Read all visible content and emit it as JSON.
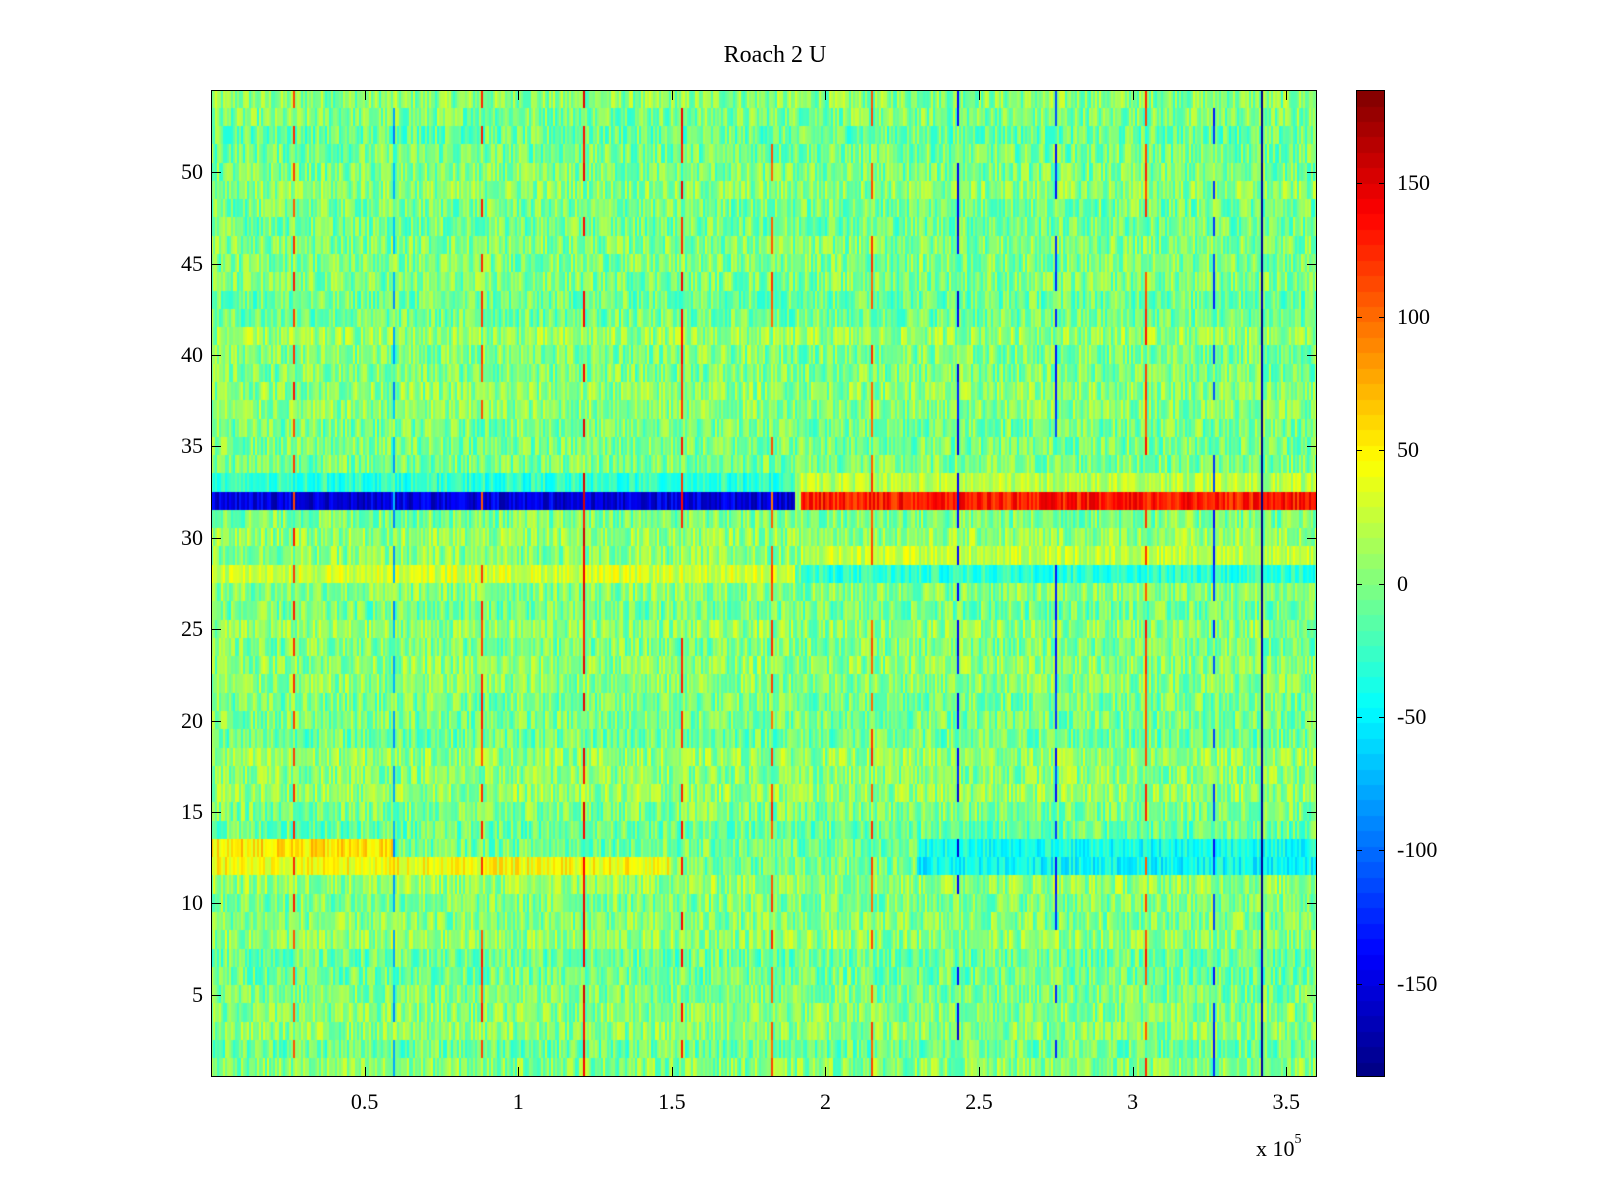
{
  "chart_data": {
    "type": "heatmap",
    "title": "Roach 2 U",
    "xlabel": "",
    "ylabel": "",
    "x_range": [
      0,
      360000
    ],
    "y_range": [
      1,
      54
    ],
    "x_ticks": [
      {
        "value": 50000,
        "label": "0.5"
      },
      {
        "value": 100000,
        "label": "1"
      },
      {
        "value": 150000,
        "label": "1.5"
      },
      {
        "value": 200000,
        "label": "2"
      },
      {
        "value": 250000,
        "label": "2.5"
      },
      {
        "value": 300000,
        "label": "3"
      },
      {
        "value": 350000,
        "label": "3.5"
      }
    ],
    "x_exponent": {
      "prefix": "x 10",
      "power": "5"
    },
    "y_ticks": [
      {
        "value": 5,
        "label": "5"
      },
      {
        "value": 10,
        "label": "10"
      },
      {
        "value": 15,
        "label": "15"
      },
      {
        "value": 20,
        "label": "20"
      },
      {
        "value": 25,
        "label": "25"
      },
      {
        "value": 30,
        "label": "30"
      },
      {
        "value": 35,
        "label": "35"
      },
      {
        "value": 40,
        "label": "40"
      },
      {
        "value": 45,
        "label": "45"
      },
      {
        "value": 50,
        "label": "50"
      }
    ],
    "colorbar": {
      "colormap": "jet",
      "range": [
        -185,
        185
      ],
      "ticks": [
        {
          "value": 150,
          "label": "150"
        },
        {
          "value": 100,
          "label": "100"
        },
        {
          "value": 50,
          "label": "50"
        },
        {
          "value": 0,
          "label": "0"
        },
        {
          "value": -50,
          "label": "-50"
        },
        {
          "value": -100,
          "label": "-100"
        },
        {
          "value": -150,
          "label": "-150"
        }
      ]
    },
    "noise_amplitude": 30,
    "vertical_streaks": [
      {
        "x": 27000,
        "value": 120,
        "rows": "even"
      },
      {
        "x": 59000,
        "value": -80,
        "rows": "alternate"
      },
      {
        "x": 88000,
        "value": 120,
        "rows": "mixed"
      },
      {
        "x": 121000,
        "value": 140,
        "rows": "mixed"
      },
      {
        "x": 153000,
        "value": 130,
        "rows": "mixed"
      },
      {
        "x": 182000,
        "value": 110,
        "rows": "mixed"
      },
      {
        "x": 215000,
        "value": 110,
        "rows": "mixed"
      },
      {
        "x": 243000,
        "value": -140,
        "rows": "mixed"
      },
      {
        "x": 275000,
        "value": -120,
        "rows": "mixed"
      },
      {
        "x": 304000,
        "value": 120,
        "rows": "mixed"
      },
      {
        "x": 326000,
        "value": -120,
        "rows": "mixed"
      },
      {
        "x": 342000,
        "value": -180,
        "rows": "all"
      }
    ],
    "row_bands": [
      {
        "row": 32,
        "x_start": 0,
        "x_end": 190000,
        "value": -150
      },
      {
        "row": 32,
        "x_start": 192000,
        "x_end": 360000,
        "value": 130
      },
      {
        "row": 12,
        "x_start": 0,
        "x_end": 150000,
        "value": 45
      },
      {
        "row": 13,
        "x_start": 0,
        "x_end": 60000,
        "value": 55
      },
      {
        "row": 12,
        "x_start": 230000,
        "x_end": 360000,
        "value": -45
      },
      {
        "row": 13,
        "x_start": 230000,
        "x_end": 360000,
        "value": -40
      },
      {
        "row": 28,
        "x_start": 0,
        "x_end": 190000,
        "value": 30
      },
      {
        "row": 28,
        "x_start": 192000,
        "x_end": 360000,
        "value": -30
      },
      {
        "row": 29,
        "x_start": 192000,
        "x_end": 360000,
        "value": 25
      },
      {
        "row": 33,
        "x_start": 0,
        "x_end": 190000,
        "value": -30
      },
      {
        "row": 33,
        "x_start": 192000,
        "x_end": 360000,
        "value": 20
      }
    ]
  }
}
